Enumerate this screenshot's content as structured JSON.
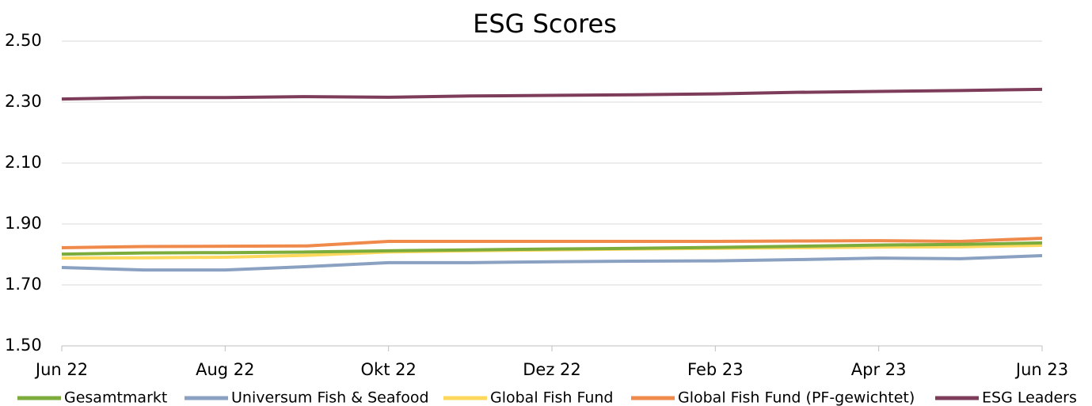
{
  "chart_data": {
    "type": "line",
    "title": "ESG Scores",
    "categories": [
      "Jun 22",
      null,
      "Aug 22",
      null,
      "Okt 22",
      null,
      "Dez 22",
      null,
      "Feb 23",
      null,
      "Apr 23",
      null,
      "Jun 23"
    ],
    "series": [
      {
        "name": "Gesamtmarkt",
        "color": "#7cac3c",
        "values": [
          1.801,
          1.805,
          1.806,
          1.808,
          1.812,
          1.815,
          1.818,
          1.82,
          1.823,
          1.827,
          1.831,
          1.833,
          1.838
        ]
      },
      {
        "name": "Universum Fish & Seafood",
        "color": "#8aa1c1",
        "values": [
          1.757,
          1.749,
          1.749,
          1.76,
          1.773,
          1.773,
          1.776,
          1.778,
          1.779,
          1.783,
          1.788,
          1.786,
          1.796
        ]
      },
      {
        "name": "Global Fish Fund",
        "color": "#fdd85d",
        "values": [
          1.788,
          1.789,
          1.791,
          1.797,
          1.808,
          1.812,
          1.815,
          1.818,
          1.82,
          1.822,
          1.824,
          1.825,
          1.83
        ]
      },
      {
        "name": "Global Fish Fund (PF-gewichtet)",
        "color": "#f08a4b",
        "values": [
          1.822,
          1.826,
          1.827,
          1.828,
          1.843,
          1.843,
          1.843,
          1.843,
          1.843,
          1.844,
          1.845,
          1.843,
          1.853
        ]
      },
      {
        "name": "ESG Leaders",
        "color": "#7d3c5a",
        "values": [
          2.31,
          2.315,
          2.315,
          2.318,
          2.316,
          2.32,
          2.322,
          2.324,
          2.327,
          2.332,
          2.335,
          2.338,
          2.342
        ]
      }
    ],
    "ylim": [
      1.5,
      2.5
    ],
    "yticks": [
      {
        "value": 1.5,
        "label": "1.50"
      },
      {
        "value": 1.7,
        "label": "1.70"
      },
      {
        "value": 1.9,
        "label": "1.90"
      },
      {
        "value": 2.1,
        "label": "2.10"
      },
      {
        "value": 2.3,
        "label": "2.30"
      },
      {
        "value": 2.5,
        "label": "2.50"
      }
    ],
    "grid": true
  }
}
